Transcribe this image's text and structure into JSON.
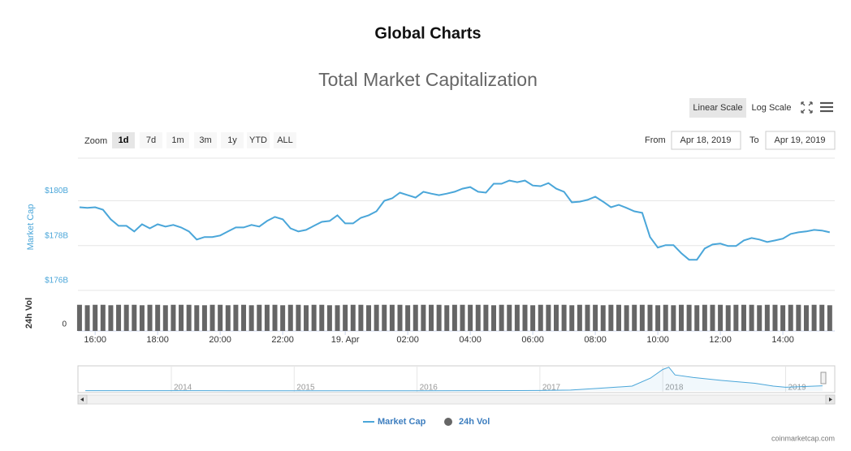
{
  "header": {
    "title": "Global Charts"
  },
  "controls": {
    "scale_buttons": [
      "Linear Scale",
      "Log Scale"
    ],
    "active_scale": 0,
    "zoom_label": "Zoom",
    "zoom_buttons": [
      "1d",
      "7d",
      "1m",
      "3m",
      "1y",
      "YTD",
      "ALL"
    ],
    "active_zoom": 0,
    "from_label": "From",
    "from_value": "Apr 18, 2019",
    "to_label": "To",
    "to_value": "Apr 19, 2019"
  },
  "chart_data": {
    "type": "line",
    "title": "Total Market Capitalization",
    "log_scale": false,
    "grid": true,
    "y_axis_label": "Market Cap",
    "y2_axis_label": "24h Vol",
    "x": [
      15.5,
      15.75,
      16,
      16.25,
      16.5,
      16.75,
      17,
      17.25,
      17.5,
      17.75,
      18,
      18.25,
      18.5,
      18.75,
      19,
      19.25,
      19.5,
      19.75,
      20,
      20.25,
      20.5,
      20.75,
      21,
      21.25,
      21.5,
      21.75,
      22,
      22.25,
      22.5,
      22.75,
      23,
      23.25,
      23.5,
      23.75,
      24,
      24.25,
      24.5,
      24.75,
      25,
      25.25,
      25.5,
      25.75,
      26,
      26.25,
      26.5,
      26.75,
      27,
      27.25,
      27.5,
      27.75,
      28,
      28.25,
      28.5,
      28.75,
      29,
      29.25,
      29.5,
      29.75,
      30,
      30.25,
      30.5,
      30.75,
      31,
      31.25,
      31.5,
      31.75,
      32,
      32.25,
      32.5,
      32.75,
      33,
      33.25,
      33.5,
      33.75,
      34,
      34.25,
      34.5,
      34.75,
      35,
      35.25,
      35.5,
      35.75,
      36,
      36.25,
      36.5,
      36.75,
      37,
      37.25,
      37.5,
      37.75,
      38,
      38.25,
      38.5,
      38.75,
      39,
      39.25,
      39.5
    ],
    "xlim": [
      15.45,
      39.66
    ],
    "xticks": [
      {
        "value": 16,
        "label": "16:00"
      },
      {
        "value": 18,
        "label": "18:00"
      },
      {
        "value": 20,
        "label": "20:00"
      },
      {
        "value": 22,
        "label": "22:00"
      },
      {
        "value": 24,
        "label": "19. Apr"
      },
      {
        "value": 26,
        "label": "02:00"
      },
      {
        "value": 28,
        "label": "04:00"
      },
      {
        "value": 30,
        "label": "06:00"
      },
      {
        "value": 32,
        "label": "08:00"
      },
      {
        "value": 34,
        "label": "10:00"
      },
      {
        "value": 36,
        "label": "12:00"
      },
      {
        "value": 38,
        "label": "14:00"
      }
    ],
    "ylim": [
      176,
      181.9
    ],
    "yticks": [
      {
        "value": 176,
        "label": "$176B"
      },
      {
        "value": 178,
        "label": "$178B"
      },
      {
        "value": 180,
        "label": "$180B"
      }
    ],
    "y2lim": [
      0,
      80
    ],
    "y2ticks": [
      0
    ],
    "series": [
      {
        "name": "Market Cap",
        "color": "#4aa6d9",
        "values": [
          179.71,
          179.68,
          179.71,
          179.6,
          179.17,
          178.88,
          178.88,
          178.63,
          178.95,
          178.77,
          178.95,
          178.85,
          178.92,
          178.81,
          178.63,
          178.27,
          178.38,
          178.38,
          178.45,
          178.63,
          178.81,
          178.81,
          178.92,
          178.85,
          179.1,
          179.28,
          179.17,
          178.77,
          178.63,
          178.7,
          178.88,
          179.06,
          179.1,
          179.35,
          178.99,
          178.99,
          179.24,
          179.35,
          179.53,
          180,
          180.11,
          180.36,
          180.25,
          180.14,
          180.4,
          180.32,
          180.25,
          180.32,
          180.4,
          180.54,
          180.61,
          180.4,
          180.36,
          180.76,
          180.76,
          180.9,
          180.83,
          180.9,
          180.68,
          180.65,
          180.79,
          180.54,
          180.4,
          179.93,
          179.96,
          180.04,
          180.18,
          179.96,
          179.71,
          179.82,
          179.68,
          179.53,
          179.46,
          178.38,
          177.91,
          178.02,
          178.02,
          177.66,
          177.37,
          177.37,
          177.87,
          178.05,
          178.09,
          177.98,
          177.98,
          178.23,
          178.34,
          178.27,
          178.16,
          178.23,
          178.31,
          178.52,
          178.59,
          178.63,
          178.7,
          178.67,
          178.59
        ]
      },
      {
        "name": "24h Vol",
        "color": "#666666",
        "axis": "y2",
        "values": [
          60,
          59,
          60,
          60,
          59,
          60,
          60,
          60,
          59,
          60,
          60,
          59,
          60,
          60,
          60,
          59,
          59,
          60,
          60,
          59,
          60,
          60,
          59,
          60,
          60,
          60,
          59,
          60,
          60,
          59,
          60,
          60,
          59,
          59,
          60,
          60,
          60,
          59,
          60,
          60,
          60,
          60,
          59,
          60,
          60,
          60,
          60,
          59,
          60,
          60,
          60,
          60,
          60,
          59,
          60,
          60,
          60,
          60,
          59,
          60,
          60,
          60,
          60,
          59,
          60,
          60,
          60,
          59,
          60,
          60,
          59,
          60,
          60,
          60,
          59,
          60,
          59,
          60,
          60,
          59,
          60,
          60,
          60,
          59,
          60,
          60,
          60,
          59,
          60,
          60,
          59,
          60,
          60,
          59,
          60,
          60,
          59
        ]
      }
    ]
  },
  "navigator": {
    "x": [
      2013.3,
      2014,
      2014.5,
      2015,
      2015.5,
      2016,
      2016.5,
      2017,
      2017.25,
      2017.5,
      2017.75,
      2017.9,
      2018,
      2018.05,
      2018.1,
      2018.25,
      2018.5,
      2018.75,
      2018.9,
      2019,
      2019.3
    ],
    "values": [
      12,
      10,
      9,
      5,
      5,
      7,
      10,
      18,
      30,
      100,
      170,
      450,
      750,
      830,
      560,
      470,
      360,
      270,
      170,
      130,
      180
    ],
    "xlim": [
      2013.24,
      2019.4
    ],
    "ylim": [
      0,
      850
    ],
    "xticks": [
      2014,
      2015,
      2016,
      2017,
      2018,
      2019
    ]
  },
  "credit": "coinmarketcap.com"
}
